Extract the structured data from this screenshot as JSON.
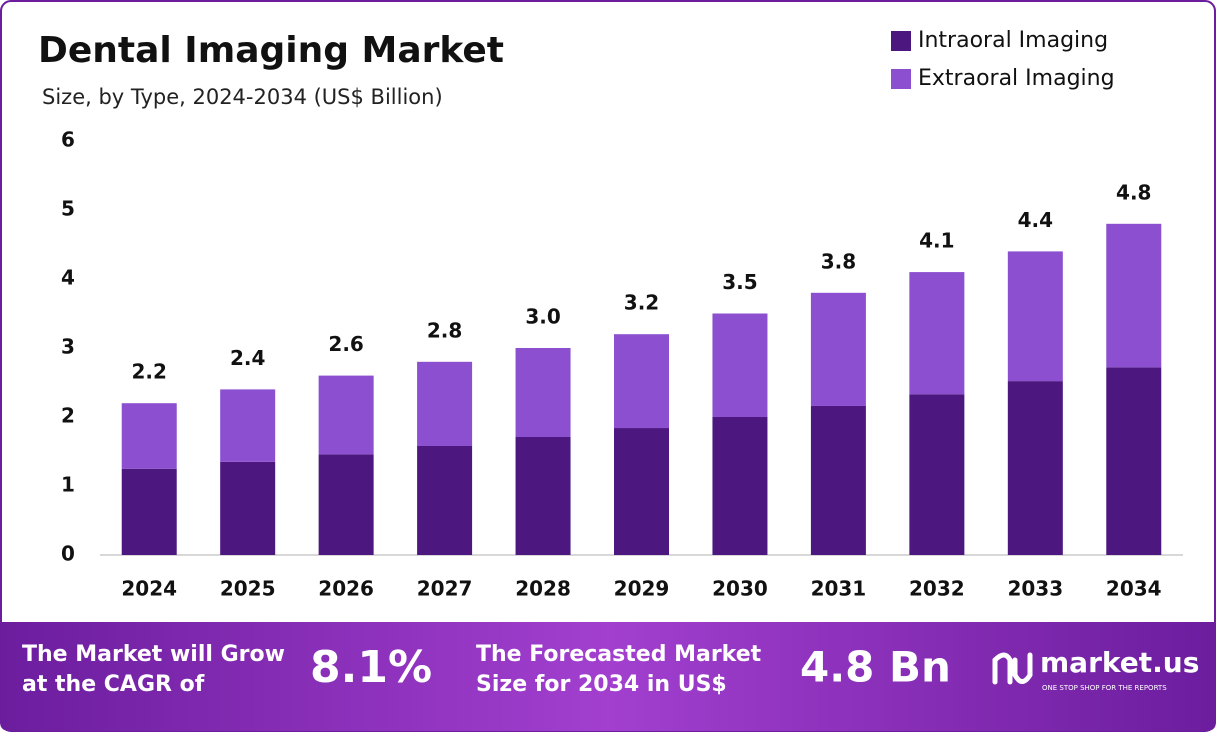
{
  "chart_data": {
    "type": "stacked_bar",
    "title": "Dental Imaging Market",
    "subtitle": "Size, by Type, 2024-2034 (US$ Billion)",
    "categories": [
      "2024",
      "2025",
      "2026",
      "2027",
      "2028",
      "2029",
      "2030",
      "2031",
      "2032",
      "2033",
      "2034"
    ],
    "series": [
      {
        "name": "Intraoral Imaging",
        "color": "#4d1780",
        "values": [
          1.25,
          1.35,
          1.46,
          1.58,
          1.71,
          1.84,
          2.0,
          2.16,
          2.33,
          2.52,
          2.72
        ]
      },
      {
        "name": "Extraoral Imaging",
        "color": "#8b4fcf",
        "values": [
          0.95,
          1.05,
          1.14,
          1.22,
          1.29,
          1.36,
          1.5,
          1.64,
          1.77,
          1.88,
          2.08
        ]
      }
    ],
    "totals": {
      "values": [
        2.2,
        2.4,
        2.6,
        2.8,
        3.0,
        3.2,
        3.5,
        3.8,
        4.1,
        4.4,
        4.8
      ],
      "value_labels": [
        "2.2",
        "2.4",
        "2.6",
        "2.8",
        "3.0",
        "3.2",
        "3.5",
        "3.8",
        "4.1",
        "4.4",
        "4.8"
      ]
    },
    "ylim": [
      0,
      6
    ],
    "yticks": [
      0,
      1,
      2,
      3,
      4,
      5,
      6
    ],
    "grid": false,
    "legend": "top-right"
  },
  "footer": {
    "cagr_text": [
      "The Market will Grow",
      "at the CAGR of"
    ],
    "cagr": "8.1%",
    "forecast_text": [
      "The Forecasted Market",
      "Size for 2034 in US$"
    ],
    "forecast": "4.8 Bn",
    "brand": "market.us",
    "tagline": "ONE STOP SHOP FOR THE REPORTS"
  }
}
